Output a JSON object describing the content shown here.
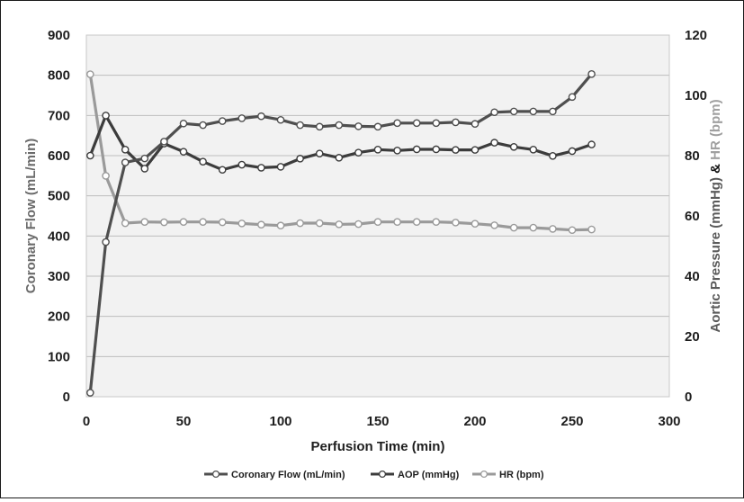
{
  "chart_data": {
    "type": "line",
    "title": "",
    "xlabel": "Perfusion Time (min)",
    "ylabel_left": "Coronary Flow (mL/min)",
    "ylabel_right_parts": [
      "Aortic Pressure (mmHg) ",
      "& ",
      "HR (bpm)"
    ],
    "xlim": [
      0,
      300
    ],
    "x_ticks": [
      0,
      50,
      100,
      150,
      200,
      250,
      300
    ],
    "ylim_left": [
      0,
      900
    ],
    "y_ticks_left": [
      0,
      100,
      200,
      300,
      400,
      500,
      600,
      700,
      800,
      900
    ],
    "ylim_right": [
      0,
      120
    ],
    "y_ticks_right": [
      0,
      20,
      40,
      60,
      80,
      100,
      120
    ],
    "grid": true,
    "legend_position": "bottom",
    "series": [
      {
        "name": "Coronary Flow (mL/min)",
        "axis": "left",
        "color": "#4f4f4f",
        "x": [
          2,
          10,
          20,
          30,
          40,
          50,
          60,
          70,
          80,
          90,
          100,
          110,
          120,
          130,
          140,
          150,
          160,
          170,
          180,
          190,
          200,
          210,
          220,
          230,
          240,
          250,
          260
        ],
        "y": [
          10,
          385,
          583,
          593,
          635,
          680,
          676,
          686,
          693,
          698,
          689,
          676,
          672,
          676,
          673,
          672,
          681,
          681,
          681,
          683,
          679,
          708,
          710,
          710,
          710,
          746,
          803
        ]
      },
      {
        "name": "AOP (mmHg)",
        "axis": "right",
        "color": "#3c3c3c",
        "x": [
          2,
          10,
          20,
          30,
          40,
          50,
          60,
          70,
          80,
          90,
          100,
          110,
          120,
          130,
          140,
          150,
          160,
          170,
          180,
          190,
          200,
          210,
          220,
          230,
          240,
          250,
          260
        ],
        "y": [
          80,
          93.3,
          82,
          75.7,
          84,
          81.3,
          78,
          75.3,
          77,
          76,
          76.3,
          79,
          80.7,
          79.3,
          81,
          82,
          81.7,
          82.1,
          82.1,
          81.9,
          81.9,
          84.3,
          82.9,
          82,
          79.9,
          81.5,
          83.7
        ]
      },
      {
        "name": "HR (bpm)",
        "axis": "right",
        "color": "#9a9a9a",
        "x": [
          2,
          10,
          20,
          30,
          40,
          50,
          60,
          70,
          80,
          90,
          100,
          110,
          120,
          130,
          140,
          150,
          160,
          170,
          180,
          190,
          200,
          210,
          220,
          230,
          240,
          250,
          260
        ],
        "y": [
          107,
          73.3,
          57.6,
          58,
          57.9,
          58,
          58,
          57.9,
          57.5,
          57.1,
          56.8,
          57.6,
          57.6,
          57.2,
          57.3,
          58,
          58,
          58,
          58,
          57.8,
          57.4,
          56.9,
          56.1,
          56.1,
          55.7,
          55.3,
          55.5
        ]
      }
    ]
  }
}
